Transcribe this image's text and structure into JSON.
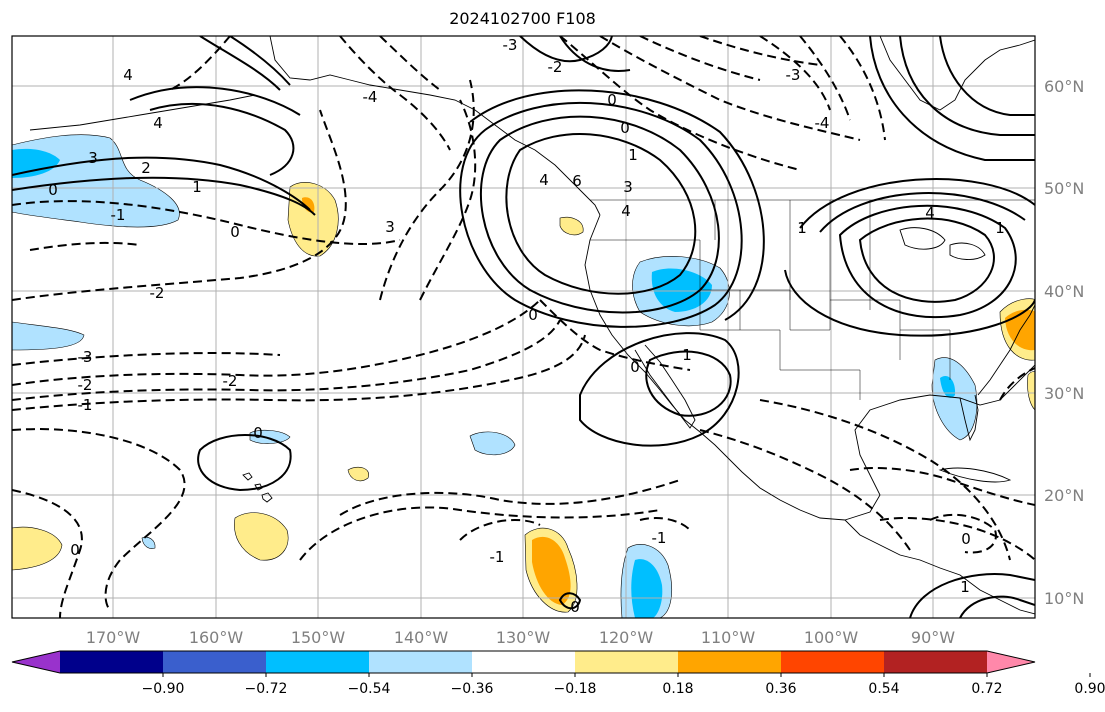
{
  "title": "2024102700 F108",
  "map": {
    "projection": "PlateCarree",
    "lon_range": [
      -180,
      -80
    ],
    "lat_range": [
      8,
      65
    ],
    "gridlines": true,
    "coastlines": true,
    "state_borders": true
  },
  "lon_ticks": [
    "170°W",
    "160°W",
    "150°W",
    "140°W",
    "130°W",
    "120°W",
    "110°W",
    "100°W",
    "90°W"
  ],
  "lat_ticks": [
    "60°N",
    "50°N",
    "40°N",
    "30°N",
    "20°N",
    "10°N"
  ],
  "colorbar": {
    "orientation": "horizontal",
    "extend": "both",
    "tick_labels": [
      "−0.90",
      "−0.72",
      "−0.54",
      "−0.36",
      "−0.18",
      "0.18",
      "0.36",
      "0.54",
      "0.72",
      "0.90"
    ],
    "colors": [
      "#9932CC",
      "#00008B",
      "#3A5FCD",
      "#00BFFF",
      "#B0E2FF",
      "#FFFFFF",
      "#FFEC8B",
      "#FFA500",
      "#FF4500",
      "#B22222",
      "#FF88AA"
    ]
  },
  "contour_labels": [
    "3",
    "2",
    "0",
    "-1",
    "1",
    "4",
    "6",
    "-4",
    "-3",
    "-2"
  ]
}
